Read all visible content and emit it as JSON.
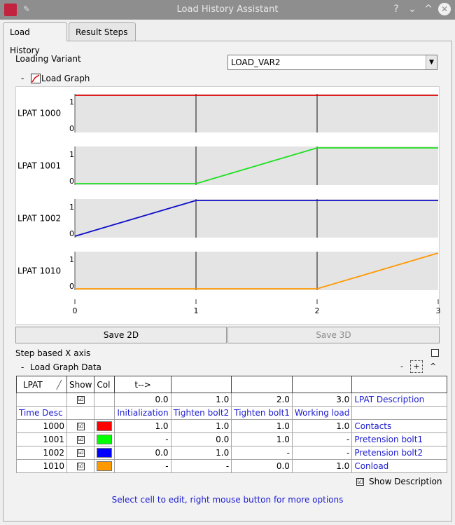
{
  "window": {
    "title": "Load History Assistant",
    "help": "?",
    "minimize": "⌄",
    "maximize": "^",
    "close": "✕"
  },
  "tabs": [
    {
      "label": "Load History"
    },
    {
      "label": "Result Steps"
    }
  ],
  "variant": {
    "label": "Loading Variant",
    "value": "LOAD_VAR2"
  },
  "graph": {
    "collapse": "-",
    "title": "Load Graph",
    "rows": [
      {
        "label": "LPAT 1000",
        "color": "#e00000",
        "points": [
          [
            0,
            1
          ],
          [
            1,
            1
          ],
          [
            2,
            1
          ],
          [
            3,
            1
          ]
        ]
      },
      {
        "label": "LPAT 1001",
        "color": "#1ee01e",
        "points": [
          [
            0,
            0
          ],
          [
            1,
            0
          ],
          [
            2,
            1
          ],
          [
            3,
            1
          ]
        ]
      },
      {
        "label": "LPAT 1002",
        "color": "#0c0cc8",
        "points": [
          [
            0,
            0
          ],
          [
            1,
            1
          ],
          [
            2,
            1
          ],
          [
            3,
            1
          ]
        ]
      },
      {
        "label": "LPAT 1010",
        "color": "#ff9800",
        "points": [
          [
            0,
            0
          ],
          [
            1,
            0
          ],
          [
            2,
            0
          ],
          [
            3,
            1
          ]
        ]
      }
    ],
    "y_ticks": [
      "1",
      "0"
    ],
    "x_ticks": [
      "0",
      "1",
      "2",
      "3"
    ]
  },
  "buttons": {
    "save2d": "Save 2D",
    "save3d": "Save 3D"
  },
  "step_axis": {
    "label": "Step based X axis"
  },
  "graph_data": {
    "collapse": "-",
    "title": "Load Graph Data",
    "minus": "-",
    "plus": "+",
    "caret": "^"
  },
  "table": {
    "header": [
      "LPAT",
      "Show",
      "Col",
      "t-->",
      "",
      "",
      "",
      ""
    ],
    "sort_mark": "╱",
    "times_row": {
      "check": "☑",
      "values": [
        "0.0",
        "1.0",
        "2.0",
        "3.0"
      ],
      "desc_header": "LPAT Description"
    },
    "desc_row": {
      "label": "Time Desc",
      "values": [
        "Initialization",
        "Tighten bolt2",
        "Tighten bolt1",
        "Working load"
      ]
    },
    "rows": [
      {
        "id": "1000",
        "color": "#ff0000",
        "values": [
          "1.0",
          "1.0",
          "1.0",
          "1.0"
        ],
        "desc": "Contacts"
      },
      {
        "id": "1001",
        "color": "#00ff00",
        "values": [
          "-",
          "0.0",
          "1.0",
          "-"
        ],
        "desc": "Pretension bolt1"
      },
      {
        "id": "1002",
        "color": "#0000ff",
        "values": [
          "0.0",
          "1.0",
          "-",
          "-"
        ],
        "desc": "Pretension bolt2"
      },
      {
        "id": "1010",
        "color": "#ff9900",
        "values": [
          "-",
          "-",
          "0.0",
          "1.0"
        ],
        "desc": "Conload"
      }
    ]
  },
  "show_description": {
    "label": "Show Description"
  },
  "status": "Select cell to edit, right mouse button for more options"
}
